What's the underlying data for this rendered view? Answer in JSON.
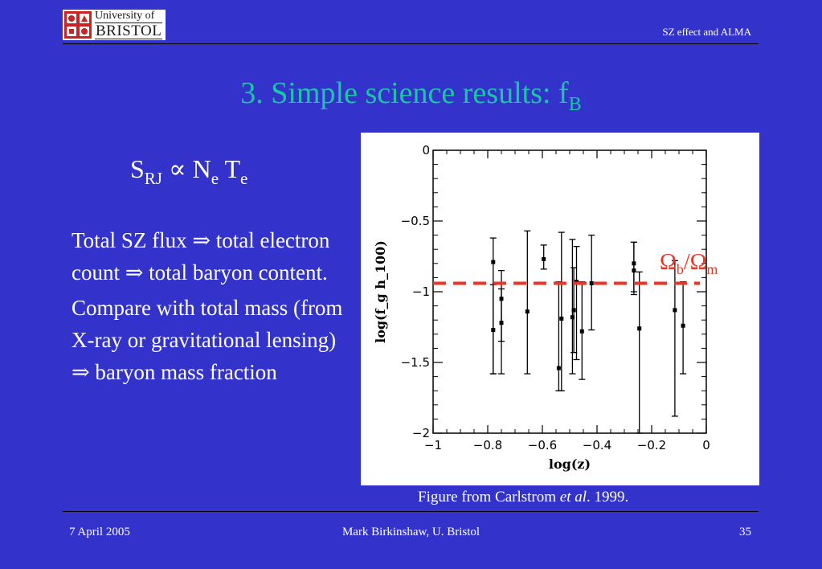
{
  "header": {
    "logo": {
      "line1": "University of",
      "line2": "BRISTOL"
    },
    "title": "SZ effect and ALMA"
  },
  "slide": {
    "title": "3. Simple science results: f",
    "title_sub": "B",
    "formula": {
      "S": "S",
      "S_sub": "RJ",
      "prop": "∝",
      "N": "N",
      "N_sub": "e",
      "T": "T",
      "T_sub": "e"
    },
    "paragraphs": [
      "Total SZ flux ⇒ total electron count ⇒ total baryon content.",
      "Compare with total mass (from X-ray or gravitational lensing) ⇒ baryon mass fraction"
    ],
    "caption": {
      "before": "Figure from Carlstrom ",
      "italic": "et al",
      "after": ". 1999."
    }
  },
  "footer": {
    "date": "7 April 2005",
    "author": "Mark Birkinshaw, U. Bristol",
    "page": "35"
  },
  "chart_data": {
    "type": "scatter",
    "xlabel": "log(z)",
    "ylabel": "log(f_g h_100)",
    "xlim": [
      -1,
      0
    ],
    "ylim": [
      -2,
      0
    ],
    "xticks": [
      -1,
      -0.8,
      -0.6,
      -0.4,
      -0.2,
      0
    ],
    "xtick_labels": [
      "−1",
      "−0.8",
      "−0.6",
      "−0.4",
      "−0.2",
      "0"
    ],
    "yticks": [
      0,
      -0.5,
      -1,
      -1.5,
      -2
    ],
    "ytick_labels": [
      "0",
      "−0.5",
      "−1",
      "−1.5",
      "−2"
    ],
    "grid": false,
    "points": [
      {
        "x": -0.78,
        "y": -0.79,
        "ylo": -1.58,
        "yhi": -0.62
      },
      {
        "x": -0.78,
        "y": -1.27,
        "ylo": -1.58,
        "yhi": -0.95
      },
      {
        "x": -0.75,
        "y": -1.05,
        "ylo": -1.35,
        "yhi": -0.85
      },
      {
        "x": -0.75,
        "y": -1.22,
        "ylo": -1.58,
        "yhi": -0.98
      },
      {
        "x": -0.655,
        "y": -1.14,
        "ylo": -1.58,
        "yhi": -0.57
      },
      {
        "x": -0.595,
        "y": -0.77,
        "ylo": -0.84,
        "yhi": -0.67
      },
      {
        "x": -0.54,
        "y": -1.54,
        "ylo": -1.7,
        "yhi": -0.93
      },
      {
        "x": -0.53,
        "y": -1.19,
        "ylo": -1.7,
        "yhi": -0.58
      },
      {
        "x": -0.49,
        "y": -1.18,
        "ylo": -1.58,
        "yhi": -0.63
      },
      {
        "x": -0.485,
        "y": -1.13,
        "ylo": -1.43,
        "yhi": -0.83
      },
      {
        "x": -0.475,
        "y": -0.93,
        "ylo": -1.48,
        "yhi": -0.68
      },
      {
        "x": -0.455,
        "y": -1.28,
        "ylo": -1.62,
        "yhi": -0.93
      },
      {
        "x": -0.42,
        "y": -0.94,
        "ylo": -1.27,
        "yhi": -0.6
      },
      {
        "x": -0.265,
        "y": -0.8,
        "ylo": -1.0,
        "yhi": -0.65
      },
      {
        "x": -0.265,
        "y": -0.85,
        "ylo": -1.02,
        "yhi": -0.65
      },
      {
        "x": -0.245,
        "y": -1.26,
        "ylo": -2.0,
        "yhi": -0.86
      },
      {
        "x": -0.115,
        "y": -1.13,
        "ylo": -1.88,
        "yhi": -0.78
      },
      {
        "x": -0.085,
        "y": -1.24,
        "ylo": -1.58,
        "yhi": -0.93
      }
    ],
    "reference_line": {
      "y": -0.94,
      "color": "#ee3322",
      "label": {
        "main": "Ω",
        "sub1": "b",
        "sep": "/Ω",
        "sub2": "m"
      }
    }
  }
}
